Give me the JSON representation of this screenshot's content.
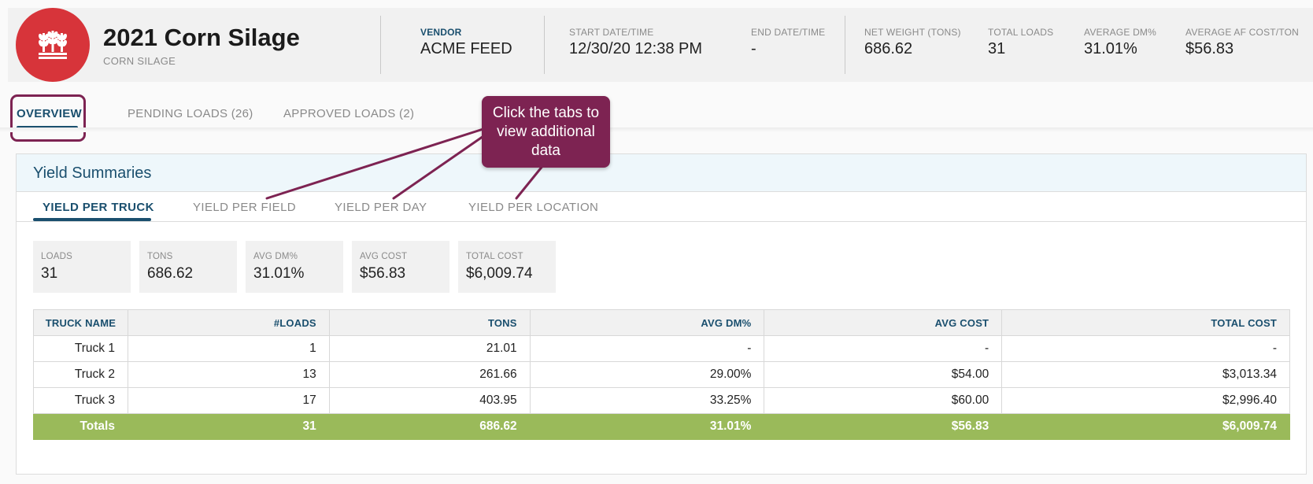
{
  "header": {
    "title": "2021 Corn Silage",
    "subtitle": "CORN SILAGE",
    "logo_icon": "wheat-icon",
    "brand_color": "#d7343a",
    "stats": [
      {
        "label": "VENDOR",
        "value": "ACME FEED"
      },
      {
        "label": "START DATE/TIME",
        "value": "12/30/20 12:38 PM"
      },
      {
        "label": "END DATE/TIME",
        "value": "-"
      },
      {
        "label": "NET WEIGHT (TONS)",
        "value": "686.62"
      },
      {
        "label": "TOTAL LOADS",
        "value": "31"
      },
      {
        "label": "AVERAGE DM%",
        "value": "31.01%"
      },
      {
        "label": "AVERAGE AF COST/TON",
        "value": "$56.83"
      }
    ]
  },
  "tabs": [
    {
      "label": "OVERVIEW",
      "active": true
    },
    {
      "label": "PENDING LOADS (26)",
      "active": false
    },
    {
      "label": "APPROVED LOADS (2)",
      "active": false
    }
  ],
  "callout": {
    "text": "Click the tabs to view additional data",
    "color": "#7d2352"
  },
  "yield": {
    "title": "Yield Summaries",
    "subtabs": [
      {
        "label": "YIELD PER TRUCK",
        "active": true
      },
      {
        "label": "YIELD PER FIELD",
        "active": false
      },
      {
        "label": "YIELD PER DAY",
        "active": false
      },
      {
        "label": "YIELD PER LOCATION",
        "active": false
      }
    ],
    "tiles": [
      {
        "label": "LOADS",
        "value": "31"
      },
      {
        "label": "TONS",
        "value": "686.62"
      },
      {
        "label": "AVG DM%",
        "value": "31.01%"
      },
      {
        "label": "AVG COST",
        "value": "$56.83"
      },
      {
        "label": "TOTAL COST",
        "value": "$6,009.74"
      }
    ],
    "table": {
      "columns": [
        "TRUCK NAME",
        "#LOADS",
        "TONS",
        "AVG DM%",
        "AVG COST",
        "TOTAL COST"
      ],
      "rows": [
        [
          "Truck 1",
          "1",
          "21.01",
          "-",
          "-",
          "-"
        ],
        [
          "Truck 2",
          "13",
          "261.66",
          "29.00%",
          "$54.00",
          "$3,013.34"
        ],
        [
          "Truck 3",
          "17",
          "403.95",
          "33.25%",
          "$60.00",
          "$2,996.40"
        ]
      ],
      "totals": [
        "Totals",
        "31",
        "686.62",
        "31.01%",
        "$56.83",
        "$6,009.74"
      ],
      "totals_color": "#9aba5a"
    }
  }
}
